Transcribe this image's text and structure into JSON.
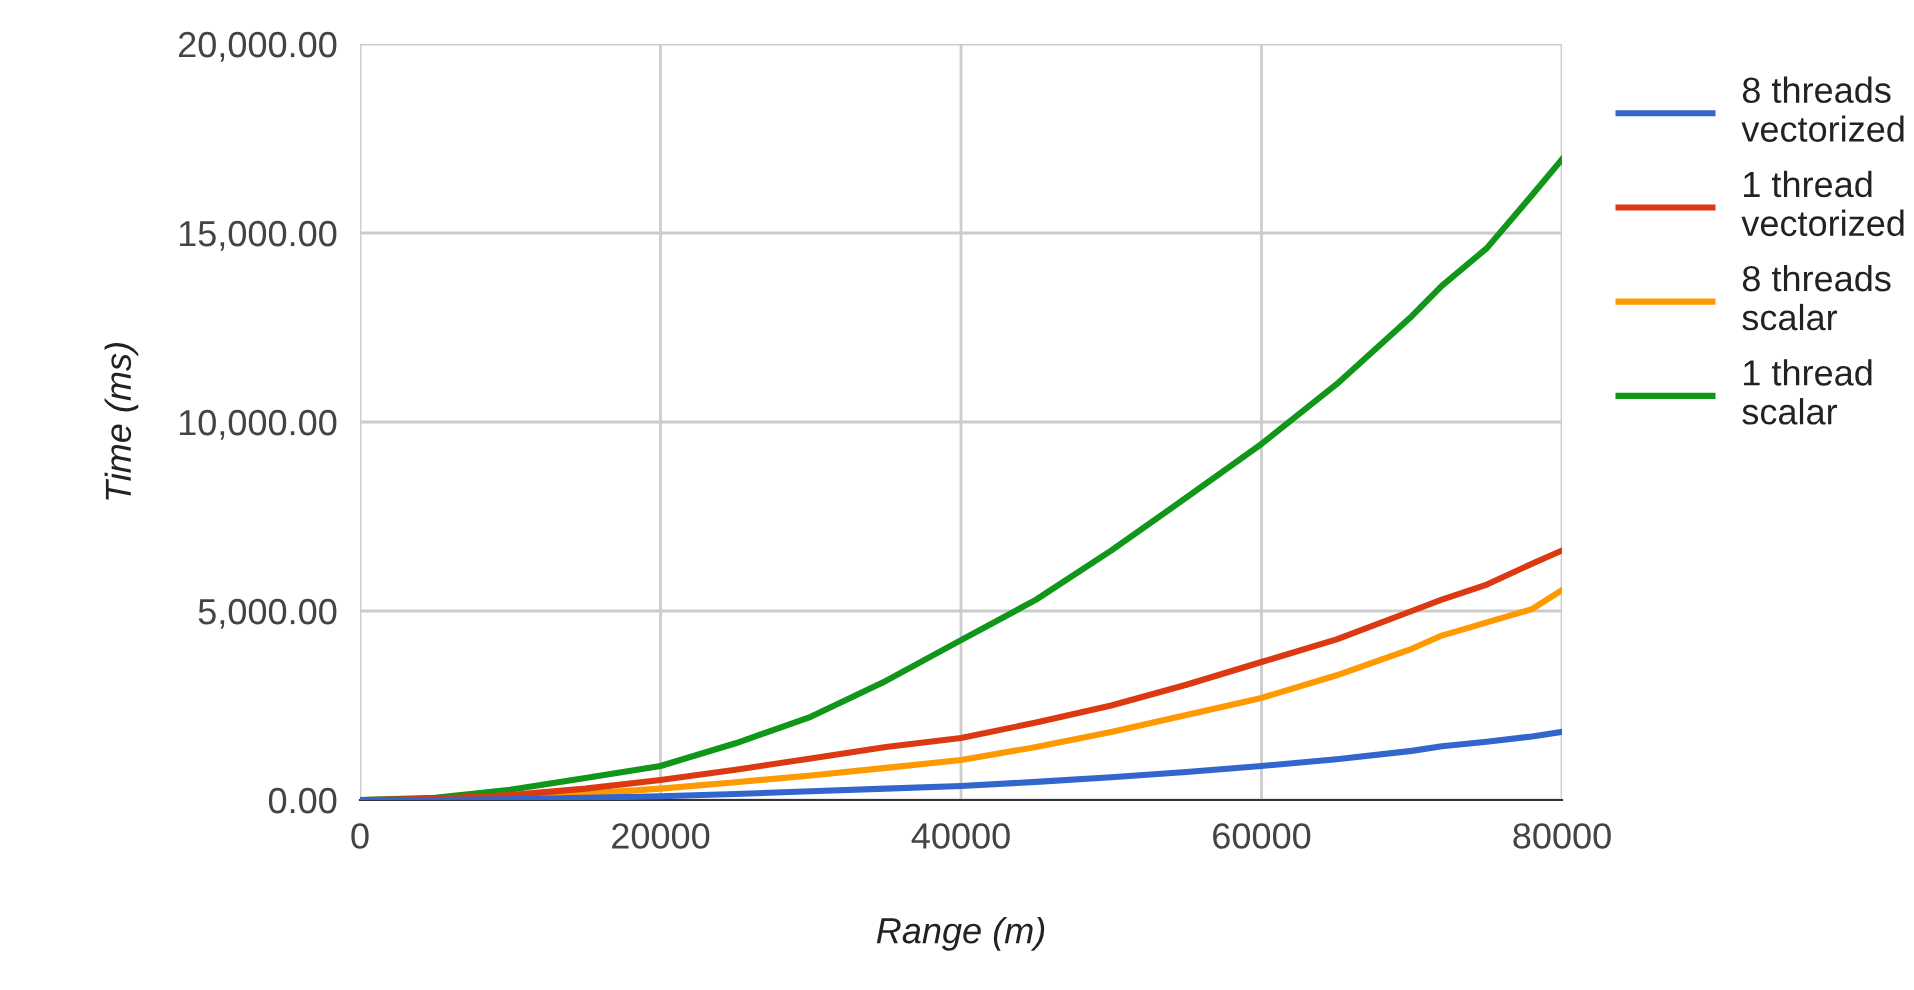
{
  "chart_data": {
    "type": "line",
    "xlabel": "Range (m)",
    "ylabel": "Time (ms)",
    "x": [
      0,
      5000,
      10000,
      15000,
      20000,
      25000,
      30000,
      35000,
      40000,
      45000,
      50000,
      55000,
      60000,
      65000,
      70000,
      72000,
      75000,
      78000,
      80000
    ],
    "xlim": [
      0,
      80000
    ],
    "xticks": [
      0,
      20000,
      40000,
      60000,
      80000
    ],
    "ylim": [
      0,
      20000
    ],
    "yticks": [
      {
        "value": 0,
        "label": "0.00"
      },
      {
        "value": 5000,
        "label": "5,000.00"
      },
      {
        "value": 10000,
        "label": "10,000.00"
      },
      {
        "value": 15000,
        "label": "15,000.00"
      },
      {
        "value": 20000,
        "label": "20,000.00"
      }
    ],
    "grid": true,
    "legend": "right",
    "marker": "none",
    "line_style": "solid",
    "series": [
      {
        "name": "8 threads\nvectorized",
        "color": "#3366cc",
        "values": [
          0,
          0,
          20,
          60,
          100,
          160,
          230,
          300,
          370,
          480,
          600,
          740,
          900,
          1080,
          1300,
          1420,
          1540,
          1680,
          1800
        ]
      },
      {
        "name": "1 thread\nvectorized",
        "color": "#dc3912",
        "values": [
          0,
          30,
          130,
          300,
          530,
          800,
          1100,
          1400,
          1640,
          2050,
          2500,
          3050,
          3650,
          4250,
          5000,
          5300,
          5700,
          6250,
          6600
        ]
      },
      {
        "name": "8 threads\nscalar",
        "color": "#ff9900",
        "values": [
          null,
          null,
          70,
          170,
          300,
          470,
          650,
          850,
          1060,
          1400,
          1800,
          2250,
          2700,
          3300,
          4000,
          4350,
          4700,
          5050,
          5550
        ]
      },
      {
        "name": "1 thread\nscalar",
        "color": "#109618",
        "values": [
          0,
          60,
          270,
          580,
          900,
          1500,
          2200,
          3150,
          4230,
          5300,
          6600,
          8000,
          9420,
          11000,
          12800,
          13600,
          14600,
          16000,
          16950
        ]
      }
    ]
  }
}
